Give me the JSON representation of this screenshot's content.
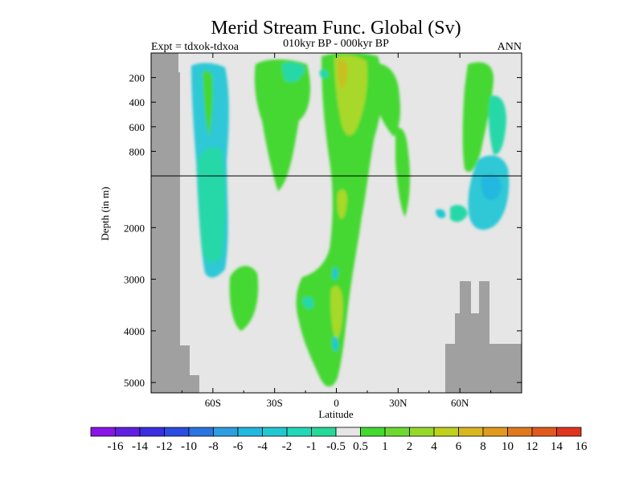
{
  "header": {
    "title": "Merid Stream Func. Global (Sv)",
    "expt": "Expt = tdxok-tdxoa",
    "period": "010kyr BP - 000kyr BP",
    "season": "ANN"
  },
  "chart_data": {
    "type": "heatmap",
    "title": "Merid Stream Func. Global (Sv)",
    "xlabel": "Latitude",
    "ylabel": "Depth (in m)",
    "x_ticks": [
      "60S",
      "30S",
      "0",
      "30N",
      "60N"
    ],
    "x_tick_values": [
      -60,
      -30,
      0,
      30,
      60
    ],
    "xlim": [
      -90,
      90
    ],
    "y_ticks_upper": [
      "200",
      "400",
      "600",
      "800"
    ],
    "y_tick_upper_values": [
      200,
      400,
      600,
      800
    ],
    "y_ticks_lower": [
      "2000",
      "3000",
      "4000",
      "5000"
    ],
    "y_tick_lower_values": [
      2000,
      3000,
      4000,
      5000
    ],
    "ylim": [
      0,
      5200
    ],
    "y_axis_break_depth": 1000,
    "land_color": "#a0a0a0",
    "background_color": "#e6e6e6",
    "colorbar": {
      "labels": [
        "-16",
        "-14",
        "-12",
        "-10",
        "-8",
        "-6",
        "-4",
        "-2",
        "-1",
        "-0.5",
        "0.5",
        "1",
        "2",
        "4",
        "6",
        "8",
        "10",
        "12",
        "14",
        "16"
      ],
      "colors": [
        "#8a14e6",
        "#6020e0",
        "#3a2ee0",
        "#2a4ce0",
        "#2a74e0",
        "#2e9ee0",
        "#22b8e0",
        "#22c8d0",
        "#22d8b8",
        "#26d89a",
        "#e6e6e6",
        "#44d832",
        "#6ed832",
        "#98d82c",
        "#c0d01e",
        "#d8b81e",
        "#e09a1e",
        "#e07a1e",
        "#e05a1e",
        "#e0341e"
      ]
    }
  }
}
